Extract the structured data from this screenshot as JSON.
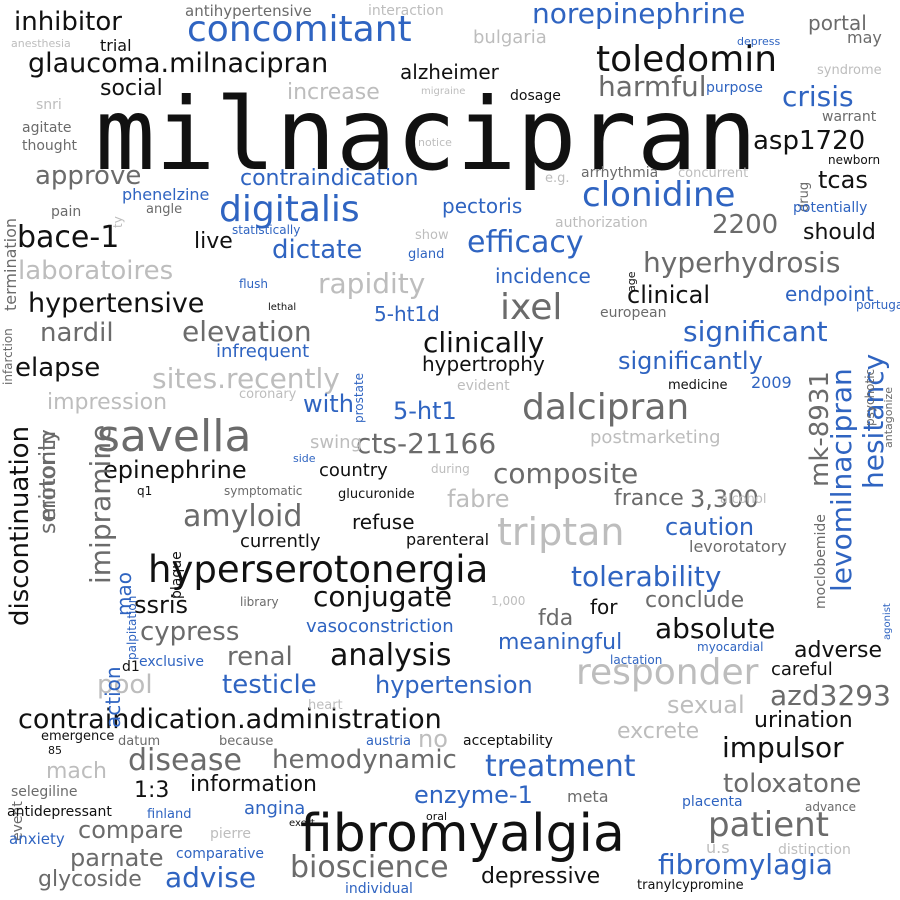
{
  "palette": {
    "black": "#111111",
    "dark": "#6b6b6b",
    "light": "#bdbdbd",
    "blue": "#2f64c1",
    "background": "#ffffff"
  },
  "words": [
    "milnacipran",
    "fibromyalgia",
    "savella",
    "hyperserotonergia",
    "dalcipran",
    "triptan",
    "responder",
    "toledomin",
    "concomitant",
    "digitalis",
    "clonidine",
    "norepinephrine",
    "glaucoma.milnacipran",
    "contraindication.administration",
    "inhibitor",
    "bace-1",
    "ixel",
    "clinically",
    "hypertensive",
    "amyloid",
    "treatment",
    "patient",
    "disease",
    "analysis",
    "efficacy",
    "levomilnacipran",
    "mk-8931",
    "discontinuation",
    "hesitancy",
    "significant",
    "crisis",
    "composite",
    "tolerability",
    "3,300",
    "asp1720",
    "hyperhydrosis",
    "elevation",
    "laboratoires",
    "rapidity",
    "sites.recently",
    "cts-21166",
    "epinephrine",
    "conjugate",
    "absolute",
    "testicle",
    "hypertension",
    "azd3293",
    "fibromylagia",
    "advise",
    "bioscience",
    "impulsor",
    "harmful",
    "approve",
    "tcas",
    "dictate",
    "clinical",
    "nardil",
    "elapse",
    "impression",
    "5-ht1",
    "with",
    "imipramine",
    "serotonin",
    "minority",
    "ssris",
    "cypress",
    "renal",
    "pool",
    "hemodynamic",
    "toloxatone",
    "enzyme-1",
    "compare",
    "parnate",
    "glycoside",
    "depressive",
    "information",
    "1:3",
    "mach",
    "no",
    "sexual",
    "excrete",
    "urination",
    "adverse",
    "careful",
    "fda",
    "conclude",
    "for",
    "meaningful",
    "action",
    "mao",
    "caution",
    "france",
    "levorotatory",
    "significantly",
    "hypertrophy",
    "endpoint",
    "incidence",
    "live",
    "should",
    "2200",
    "contraindication",
    "pectoris",
    "phenelzine",
    "alzheimer",
    "social",
    "increase",
    "dosage",
    "purpose",
    "portal",
    "may",
    "trial",
    "anesthesia",
    "antihypertensive",
    "interaction",
    "bulgaria",
    "syndrome",
    "warrant",
    "newborn",
    "drug",
    "potentially",
    "snri",
    "agitate",
    "thought",
    "notice",
    "e.g.",
    "arrhythmia",
    "concurrent",
    "authorization",
    "pain",
    "angle",
    "statistically",
    "show",
    "gland",
    "flush",
    "lethal",
    "prostate",
    "infarction",
    "termination",
    "5-ht1d",
    "european",
    "portugal",
    "psychotic",
    "antagonize",
    "infrequent",
    "coronary",
    "evident",
    "medicine",
    "2009",
    "swing",
    "side",
    "during",
    "symptomatic",
    "glucuronide",
    "moclobemide",
    "fabre",
    "refuse",
    "currently",
    "parenteral",
    "alcohol",
    "plaque",
    "d1",
    "palpitation",
    "library",
    "1,000",
    "vasoconstriction",
    "agonist",
    "exclusive",
    "lactation",
    "myocardial",
    "heart",
    "emergence",
    "85",
    "datum",
    "because",
    "austria",
    "acceptability",
    "event",
    "selegiline",
    "meta",
    "antidepressant",
    "angina",
    "finland",
    "exert",
    "oral",
    "placenta",
    "advance",
    "anxiety",
    "pierre",
    "comparative",
    "u.s",
    "distinction",
    "individual",
    "tranylcypromine",
    "migraine",
    "depress",
    "country",
    "postmarketing",
    "age",
    "ty",
    "q1"
  ]
}
